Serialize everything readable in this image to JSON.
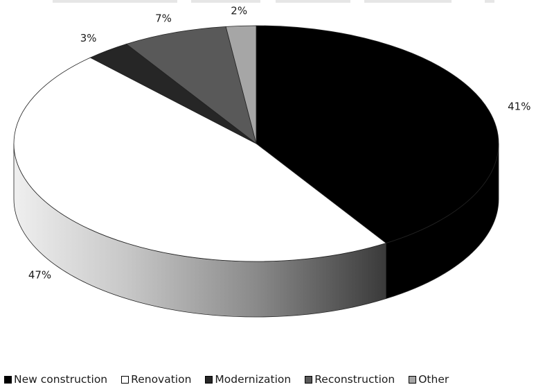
{
  "chart_data": {
    "type": "pie",
    "style": "3d-exploded-none",
    "categories": [
      "New construction",
      "Renovation",
      "Modernization",
      "Reconstruction",
      "Other"
    ],
    "values": [
      41,
      47,
      3,
      7,
      2
    ],
    "value_labels": [
      "41%",
      "47%",
      "3%",
      "7%",
      "2%"
    ],
    "colors": [
      "#000000",
      "#ffffff",
      "#262626",
      "#595959",
      "#a6a6a6"
    ],
    "title": "",
    "legend_position": "bottom"
  }
}
